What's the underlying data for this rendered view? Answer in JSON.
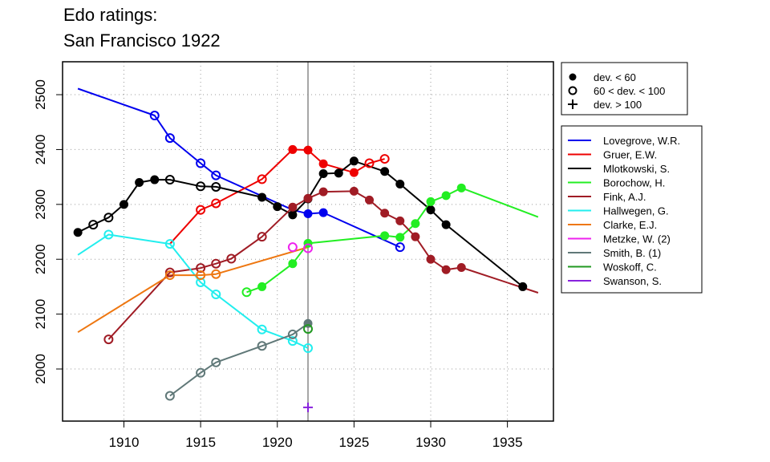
{
  "chart_data": {
    "type": "line",
    "title_lines": [
      "Edo ratings:",
      "San Francisco 1922"
    ],
    "xlabel": "",
    "ylabel": "",
    "xlim": [
      1906,
      1938
    ],
    "ylim": [
      1905,
      2560
    ],
    "xticks": [
      1910,
      1915,
      1920,
      1925,
      1930,
      1935
    ],
    "yticks": [
      2000,
      2100,
      2200,
      2300,
      2400,
      2500
    ],
    "grid": true,
    "reference_line_x": 1922,
    "marker_legend": [
      {
        "marker": "filled",
        "label": "dev. < 60"
      },
      {
        "marker": "open",
        "label": "60 < dev. < 100"
      },
      {
        "marker": "plus",
        "label": "dev. > 100"
      }
    ],
    "series": [
      {
        "name": "Lovegrove, W.R.",
        "color": "#0000ee",
        "line": [
          [
            1907,
            2511
          ],
          [
            1912,
            2462
          ],
          [
            1913,
            2421
          ],
          [
            1915,
            2375
          ],
          [
            1916,
            2353
          ],
          [
            1921,
            2290
          ],
          [
            1922,
            2283
          ],
          [
            1923,
            2285
          ],
          [
            1928,
            2222
          ]
        ],
        "markers": [
          [
            "open",
            1912,
            2462
          ],
          [
            "open",
            1913,
            2421
          ],
          [
            "open",
            1915,
            2375
          ],
          [
            "open",
            1916,
            2353
          ],
          [
            "filled",
            1922,
            2283
          ],
          [
            "filled",
            1923,
            2285
          ],
          [
            "open",
            1928,
            2222
          ]
        ]
      },
      {
        "name": "Gruer, E.W.",
        "color": "#ee0000",
        "line": [
          [
            1913,
            2228
          ],
          [
            1915,
            2290
          ],
          [
            1916,
            2302
          ],
          [
            1919,
            2346
          ],
          [
            1921,
            2400
          ],
          [
            1922,
            2399
          ],
          [
            1923,
            2374
          ],
          [
            1925,
            2358
          ],
          [
            1926,
            2375
          ],
          [
            1927,
            2383
          ]
        ],
        "markers": [
          [
            "open",
            1915,
            2290
          ],
          [
            "open",
            1916,
            2302
          ],
          [
            "open",
            1919,
            2346
          ],
          [
            "filled",
            1921,
            2400
          ],
          [
            "filled",
            1922,
            2399
          ],
          [
            "filled",
            1923,
            2374
          ],
          [
            "filled",
            1925,
            2358
          ],
          [
            "open",
            1926,
            2375
          ],
          [
            "open",
            1927,
            2383
          ]
        ]
      },
      {
        "name": "Mlotkowski, S.",
        "color": "#000000",
        "line": [
          [
            1907,
            2249
          ],
          [
            1908,
            2263
          ],
          [
            1909,
            2276
          ],
          [
            1910,
            2300
          ],
          [
            1911,
            2340
          ],
          [
            1912,
            2345
          ],
          [
            1913,
            2345
          ],
          [
            1915,
            2333
          ],
          [
            1916,
            2332
          ],
          [
            1919,
            2313
          ],
          [
            1920,
            2296
          ],
          [
            1921,
            2281
          ],
          [
            1922,
            2310
          ],
          [
            1923,
            2356
          ],
          [
            1924,
            2357
          ],
          [
            1925,
            2379
          ],
          [
            1927,
            2360
          ],
          [
            1928,
            2337
          ],
          [
            1930,
            2290
          ],
          [
            1931,
            2263
          ],
          [
            1936,
            2150
          ]
        ],
        "markers": [
          [
            "filled",
            1907,
            2249
          ],
          [
            "open",
            1908,
            2263
          ],
          [
            "open",
            1909,
            2276
          ],
          [
            "filled",
            1910,
            2300
          ],
          [
            "filled",
            1911,
            2340
          ],
          [
            "filled",
            1912,
            2345
          ],
          [
            "open",
            1913,
            2345
          ],
          [
            "open",
            1915,
            2333
          ],
          [
            "open",
            1916,
            2332
          ],
          [
            "filled",
            1919,
            2313
          ],
          [
            "filled",
            1920,
            2296
          ],
          [
            "filled",
            1921,
            2281
          ],
          [
            "filled",
            1922,
            2310
          ],
          [
            "filled",
            1923,
            2356
          ],
          [
            "filled",
            1924,
            2357
          ],
          [
            "filled",
            1925,
            2379
          ],
          [
            "filled",
            1927,
            2360
          ],
          [
            "filled",
            1928,
            2337
          ],
          [
            "filled",
            1930,
            2290
          ],
          [
            "filled",
            1931,
            2263
          ],
          [
            "filled",
            1936,
            2150
          ]
        ]
      },
      {
        "name": "Borochow, H.",
        "color": "#22ee22",
        "line": [
          [
            1918,
            2140
          ],
          [
            1919,
            2150
          ],
          [
            1921,
            2192
          ],
          [
            1922,
            2229
          ],
          [
            1927,
            2243
          ],
          [
            1928,
            2240
          ],
          [
            1929,
            2265
          ],
          [
            1930,
            2305
          ],
          [
            1931,
            2316
          ],
          [
            1932,
            2330
          ],
          [
            1937,
            2277
          ]
        ],
        "markers": [
          [
            "open",
            1918,
            2140
          ],
          [
            "filled",
            1919,
            2150
          ],
          [
            "filled",
            1921,
            2192
          ],
          [
            "filled",
            1922,
            2229
          ],
          [
            "filled",
            1927,
            2243
          ],
          [
            "filled",
            1928,
            2240
          ],
          [
            "filled",
            1929,
            2265
          ],
          [
            "filled",
            1930,
            2305
          ],
          [
            "filled",
            1931,
            2316
          ],
          [
            "filled",
            1932,
            2330
          ]
        ]
      },
      {
        "name": "Fink, A.J.",
        "color": "#a01c25",
        "line": [
          [
            1909,
            2054
          ],
          [
            1913,
            2176
          ],
          [
            1915,
            2184
          ],
          [
            1916,
            2192
          ],
          [
            1917,
            2201
          ],
          [
            1919,
            2241
          ],
          [
            1921,
            2295
          ],
          [
            1922,
            2311
          ],
          [
            1923,
            2323
          ],
          [
            1925,
            2324
          ],
          [
            1926,
            2308
          ],
          [
            1927,
            2284
          ],
          [
            1928,
            2270
          ],
          [
            1929,
            2241
          ],
          [
            1930,
            2200
          ],
          [
            1931,
            2181
          ],
          [
            1932,
            2185
          ],
          [
            1937,
            2139
          ]
        ],
        "markers": [
          [
            "open",
            1909,
            2054
          ],
          [
            "open",
            1913,
            2176
          ],
          [
            "open",
            1915,
            2184
          ],
          [
            "open",
            1916,
            2192
          ],
          [
            "open",
            1917,
            2201
          ],
          [
            "open",
            1919,
            2241
          ],
          [
            "filled",
            1921,
            2295
          ],
          [
            "filled",
            1922,
            2311
          ],
          [
            "filled",
            1923,
            2323
          ],
          [
            "filled",
            1925,
            2324
          ],
          [
            "filled",
            1926,
            2308
          ],
          [
            "filled",
            1927,
            2284
          ],
          [
            "filled",
            1928,
            2270
          ],
          [
            "filled",
            1929,
            2241
          ],
          [
            "filled",
            1930,
            2200
          ],
          [
            "filled",
            1931,
            2181
          ],
          [
            "filled",
            1932,
            2185
          ]
        ]
      },
      {
        "name": "Hallwegen, G.",
        "color": "#22eeee",
        "line": [
          [
            1907,
            2208
          ],
          [
            1909,
            2245
          ],
          [
            1913,
            2228
          ],
          [
            1915,
            2158
          ],
          [
            1916,
            2136
          ],
          [
            1919,
            2072
          ],
          [
            1921,
            2051
          ],
          [
            1922,
            2038
          ]
        ],
        "markers": [
          [
            "open",
            1909,
            2245
          ],
          [
            "open",
            1913,
            2228
          ],
          [
            "open",
            1915,
            2158
          ],
          [
            "open",
            1916,
            2136
          ],
          [
            "open",
            1919,
            2072
          ],
          [
            "open",
            1921,
            2051
          ],
          [
            "open",
            1922,
            2038
          ]
        ]
      },
      {
        "name": "Clarke, E.J.",
        "color": "#ee7711",
        "line": [
          [
            1907,
            2067
          ],
          [
            1913,
            2171
          ],
          [
            1915,
            2171
          ],
          [
            1916,
            2173
          ],
          [
            1922,
            2222
          ]
        ],
        "markers": [
          [
            "open",
            1913,
            2171
          ],
          [
            "open",
            1915,
            2171
          ],
          [
            "open",
            1916,
            2173
          ]
        ]
      },
      {
        "name": "Metzke, W. (2)",
        "color": "#ee22ee",
        "line": [],
        "markers": [
          [
            "open",
            1921,
            2222
          ],
          [
            "open",
            1922,
            2220
          ]
        ]
      },
      {
        "name": "Smith, B. (1)",
        "color": "#607878",
        "line": [
          [
            1913,
            1951
          ],
          [
            1915,
            1993
          ],
          [
            1916,
            2012
          ],
          [
            1919,
            2042
          ],
          [
            1921,
            2063
          ],
          [
            1922,
            2083
          ]
        ],
        "markers": [
          [
            "open",
            1913,
            1951
          ],
          [
            "open",
            1915,
            1993
          ],
          [
            "open",
            1916,
            2012
          ],
          [
            "open",
            1919,
            2042
          ],
          [
            "open",
            1921,
            2063
          ],
          [
            "filled",
            1922,
            2083
          ]
        ]
      },
      {
        "name": "Woskoff, C.",
        "color": "#229922",
        "line": [],
        "markers": [
          [
            "open",
            1922,
            2073
          ]
        ]
      },
      {
        "name": "Swanson, S.",
        "color": "#8822dd",
        "line": [],
        "markers": [
          [
            "plus",
            1922,
            1930
          ]
        ]
      }
    ]
  }
}
